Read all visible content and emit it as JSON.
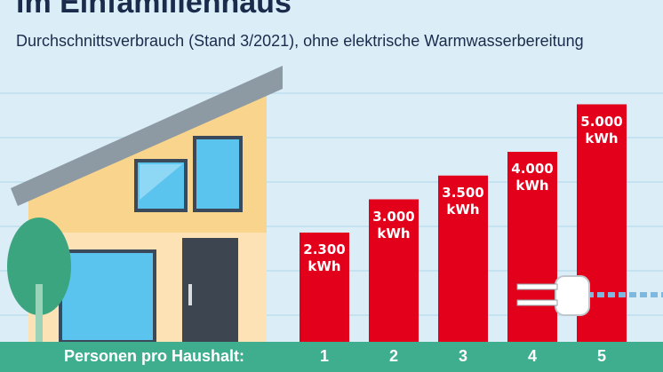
{
  "chart_data": {
    "type": "bar",
    "title": "im Einfamilienhaus",
    "subtitle": "Durchschnittsverbrauch (Stand 3/2021), ohne elektrische Warmwasserbereitung",
    "x_label": "Personen pro Haushalt:",
    "categories": [
      "1",
      "2",
      "3",
      "4",
      "5"
    ],
    "values": [
      2300,
      3000,
      3500,
      4000,
      5000
    ],
    "value_labels": [
      "2.300 kWh",
      "3.000 kWh",
      "3.500 kWh",
      "4.000 kWh",
      "5.000 kWh"
    ],
    "color": "#e3001b"
  }
}
